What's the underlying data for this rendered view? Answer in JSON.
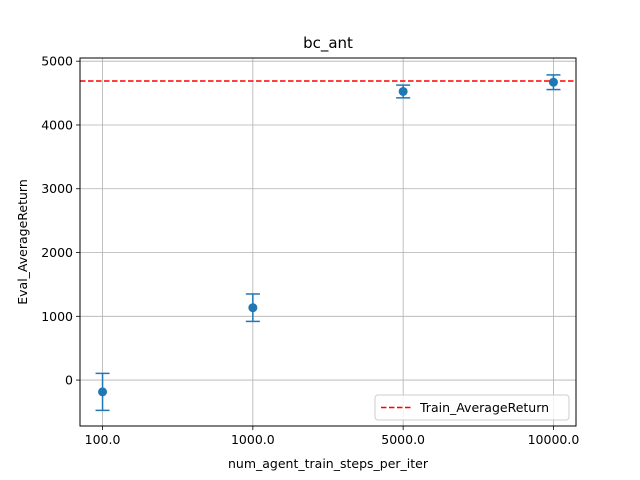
{
  "chart_data": {
    "type": "scatter",
    "title": "bc_ant",
    "xlabel": "num_agent_train_steps_per_iter",
    "ylabel": "Eval_AverageReturn",
    "categories": [
      "100.0",
      "1000.0",
      "5000.0",
      "10000.0"
    ],
    "series": [
      {
        "values": [
          -185,
          1135,
          4525,
          4670
        ],
        "errors": [
          290,
          215,
          100,
          115
        ],
        "color": "#1f77b4"
      }
    ],
    "reference_line": {
      "name": "Train_AverageReturn",
      "value": 4690,
      "color": "#ff0000",
      "style": "dashed"
    },
    "ylim": [
      -720,
      5050
    ],
    "yticks": [
      "0",
      "1000",
      "2000",
      "3000",
      "4000",
      "5000"
    ],
    "grid": true,
    "legend_position": "lower-right"
  }
}
